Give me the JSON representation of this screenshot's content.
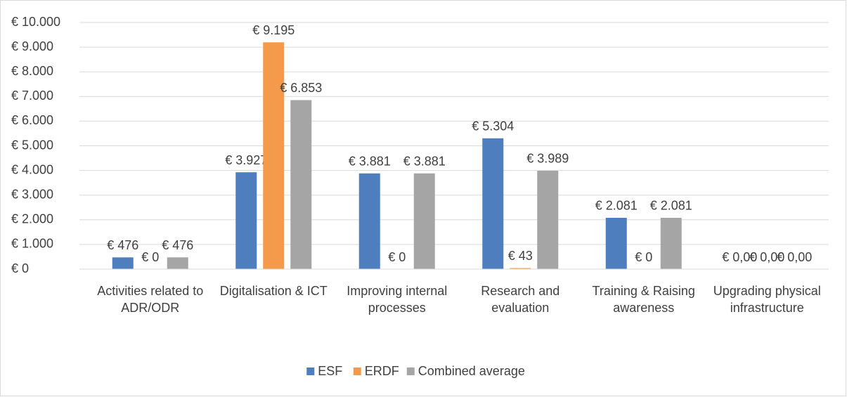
{
  "chart_data": {
    "type": "bar",
    "categories": [
      "Activities related to ADR/ODR",
      "Digitalisation & ICT",
      "Improving internal processes",
      "Research and evaluation",
      "Training & Raising awareness",
      "Upgrading physical infrastructure"
    ],
    "series": [
      {
        "name": "ESF",
        "color": "#4e7ebe",
        "values": [
          476,
          3927,
          3881,
          5304,
          2081,
          0
        ],
        "value_labels": [
          "€ 476",
          "€ 3.927",
          "€ 3.881",
          "€ 5.304",
          "€ 2.081",
          "€ 0,00"
        ]
      },
      {
        "name": "ERDF",
        "color": "#f59a4a",
        "values": [
          0,
          9195,
          0,
          43,
          0,
          0
        ],
        "value_labels": [
          "€ 0",
          "€ 9.195",
          "€ 0",
          "€ 43",
          "€ 0",
          "€ 0,00"
        ]
      },
      {
        "name": "Combined average",
        "color": "#a5a5a5",
        "values": [
          476,
          6853,
          3881,
          3989,
          2081,
          0
        ],
        "value_labels": [
          "€ 476",
          "€ 6.853",
          "€ 3.881",
          "€ 3.989",
          "€ 2.081",
          "€ 0,00"
        ]
      }
    ],
    "ylim": [
      0,
      10000
    ],
    "yticks": [
      {
        "value": 0,
        "label": "€ 0"
      },
      {
        "value": 1000,
        "label": "€ 1.000"
      },
      {
        "value": 2000,
        "label": "€ 2.000"
      },
      {
        "value": 3000,
        "label": "€ 3.000"
      },
      {
        "value": 4000,
        "label": "€ 4.000"
      },
      {
        "value": 5000,
        "label": "€ 5.000"
      },
      {
        "value": 6000,
        "label": "€ 6.000"
      },
      {
        "value": 7000,
        "label": "€ 7.000"
      },
      {
        "value": 8000,
        "label": "€ 8.000"
      },
      {
        "value": 9000,
        "label": "€ 9.000"
      },
      {
        "value": 10000,
        "label": "€ 10.000"
      }
    ],
    "grid": true,
    "legend": "bottom"
  }
}
